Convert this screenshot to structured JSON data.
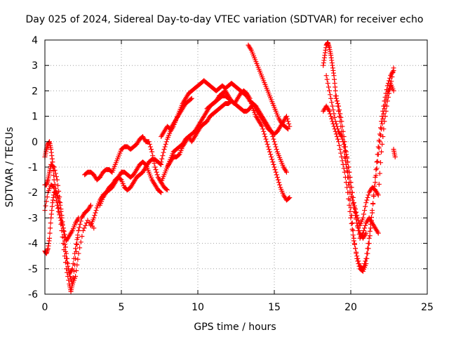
{
  "chart_data": {
    "type": "scatter",
    "title": "Day 025 of 2024, Sidereal Day-to-day VTEC variation (SDTVAR) for receiver echo",
    "xlabel": "GPS time / hours",
    "ylabel": "SDTVAR / TECUs",
    "xlim": [
      0,
      25
    ],
    "ylim": [
      -6,
      4
    ],
    "xticks": [
      "0",
      "5",
      "10",
      "15",
      "20",
      "25"
    ],
    "yticks": [
      "-6",
      "-5",
      "-4",
      "-3",
      "-2",
      "-1",
      "0",
      "1",
      "2",
      "3",
      "4"
    ],
    "grid": true,
    "marker": "+",
    "color": "#ff0000",
    "series": [
      {
        "x": [
          0.0,
          0.1,
          0.2,
          0.3,
          0.4,
          0.5,
          0.6,
          0.8,
          1.0,
          1.2,
          1.4,
          1.6,
          1.7,
          1.8,
          2.0,
          2.2,
          2.4,
          2.6,
          2.8,
          3.0
        ],
        "y": [
          -0.6,
          -0.3,
          -0.1,
          0.0,
          -0.3,
          -0.8,
          -1.5,
          -2.2,
          -3.0,
          -4.0,
          -5.0,
          -5.6,
          -5.9,
          -5.6,
          -4.6,
          -3.5,
          -3.0,
          -2.8,
          -2.7,
          -2.5
        ]
      },
      {
        "x": [
          0.0,
          0.1,
          0.2,
          0.3,
          0.4,
          0.5,
          0.6,
          0.8,
          1.0,
          1.2,
          1.4,
          1.6,
          1.8,
          2.0,
          2.2
        ],
        "y": [
          -4.3,
          -4.4,
          -4.2,
          -3.8,
          -3.0,
          -2.4,
          -2.0,
          -2.0,
          -2.5,
          -3.5,
          -4.6,
          -5.2,
          -5.0,
          -4.2,
          -3.5
        ]
      },
      {
        "x": [
          0.0,
          0.2,
          0.4,
          0.6,
          0.8,
          1.0,
          1.2,
          1.4,
          1.6,
          1.8,
          2.0,
          2.2
        ],
        "y": [
          -2.7,
          -2.0,
          -1.7,
          -1.8,
          -2.5,
          -3.0,
          -3.4,
          -3.9,
          -3.7,
          -3.5,
          -3.2,
          -3.0
        ]
      },
      {
        "x": [
          0.0,
          0.1,
          0.2,
          0.3,
          0.4,
          0.6,
          0.8,
          1.0,
          1.2,
          1.4,
          1.6,
          1.8,
          2.0,
          2.2,
          2.5,
          2.8,
          3.2
        ],
        "y": [
          -1.7,
          -1.7,
          -1.5,
          -1.2,
          -0.9,
          -1.0,
          -1.5,
          -2.4,
          -3.4,
          -4.4,
          -5.2,
          -5.6,
          -5.3,
          -4.4,
          -3.5,
          -3.1,
          -3.4
        ]
      },
      {
        "x": [
          2.6,
          2.8,
          3.0,
          3.2,
          3.4,
          3.6,
          3.8,
          4.0,
          4.2,
          4.4,
          4.6,
          4.8,
          5.0,
          5.2,
          5.4,
          5.6,
          5.8,
          6.0,
          6.2,
          6.4,
          6.6,
          6.8,
          7.0,
          7.2,
          7.4,
          7.6,
          7.8,
          8.0
        ],
        "y": [
          -1.3,
          -1.2,
          -1.2,
          -1.3,
          -1.5,
          -1.4,
          -1.2,
          -1.1,
          -1.1,
          -1.2,
          -0.9,
          -0.6,
          -0.3,
          -0.2,
          -0.2,
          -0.3,
          -0.2,
          -0.1,
          0.1,
          0.2,
          0.0,
          0.0,
          -0.4,
          -1.0,
          -1.4,
          -1.6,
          -1.8,
          -1.9
        ]
      },
      {
        "x": [
          3.0,
          3.2,
          3.4,
          3.6,
          3.8,
          4.0,
          4.2,
          4.4,
          4.6,
          4.8,
          5.0,
          5.2,
          5.4,
          5.6,
          5.8,
          6.0,
          6.2,
          6.4,
          6.6,
          6.8,
          7.0,
          7.2,
          7.4,
          7.6
        ],
        "y": [
          -3.3,
          -3.0,
          -2.6,
          -2.3,
          -2.1,
          -2.0,
          -1.9,
          -1.8,
          -1.6,
          -1.4,
          -1.2,
          -1.2,
          -1.3,
          -1.4,
          -1.3,
          -1.1,
          -0.9,
          -0.8,
          -0.9,
          -1.2,
          -1.5,
          -1.7,
          -1.9,
          -2.0
        ]
      },
      {
        "x": [
          3.6,
          3.8,
          4.0,
          4.2,
          4.4,
          4.6,
          4.8,
          5.0,
          5.2,
          5.4,
          5.6,
          5.8,
          6.0,
          6.2,
          6.4,
          6.6,
          6.8,
          7.0,
          7.2,
          7.4,
          7.6
        ],
        "y": [
          -2.5,
          -2.2,
          -2.0,
          -1.8,
          -1.7,
          -1.5,
          -1.4,
          -1.5,
          -1.8,
          -1.9,
          -1.8,
          -1.6,
          -1.4,
          -1.3,
          -1.2,
          -1.0,
          -0.8,
          -0.7,
          -0.7,
          -0.8,
          -0.9
        ]
      },
      {
        "x": [
          7.6,
          7.8,
          8.0,
          8.2,
          8.4,
          8.6,
          8.8,
          9.0,
          9.2,
          9.4,
          9.6,
          9.8,
          10.0,
          10.2,
          10.4,
          10.6,
          10.8,
          11.0,
          11.2,
          11.4,
          11.6,
          11.8,
          12.0,
          12.2,
          12.4,
          12.6,
          12.8,
          13.0,
          13.2,
          13.4,
          13.6,
          13.8,
          14.0,
          14.2,
          14.4,
          14.6,
          14.8,
          15.0,
          15.2,
          15.4,
          15.6,
          15.8,
          16.0
        ],
        "y": [
          -0.8,
          -0.3,
          0.1,
          0.4,
          0.6,
          0.9,
          1.2,
          1.5,
          1.7,
          1.9,
          2.0,
          2.1,
          2.2,
          2.3,
          2.4,
          2.3,
          2.2,
          2.1,
          2.0,
          2.1,
          2.2,
          2.1,
          2.2,
          2.3,
          2.2,
          2.1,
          2.0,
          1.9,
          1.8,
          1.6,
          1.5,
          1.3,
          1.1,
          0.9,
          0.7,
          0.5,
          0.4,
          0.3,
          0.4,
          0.6,
          0.8,
          1.0,
          0.6
        ]
      },
      {
        "x": [
          7.6,
          7.8,
          8.0,
          8.2,
          8.4,
          8.6,
          8.8,
          9.0,
          9.2,
          9.4,
          9.6,
          9.8,
          10.0,
          10.2,
          10.4,
          10.6,
          10.8,
          11.0,
          11.2,
          11.4,
          11.6,
          11.8,
          12.0,
          12.2,
          12.4,
          12.6,
          12.8,
          13.0,
          13.2,
          13.4,
          13.6,
          13.8,
          14.0,
          14.2,
          14.4,
          14.6,
          14.8,
          15.0,
          15.2,
          15.4,
          15.6,
          15.8,
          16.0
        ],
        "y": [
          -1.6,
          -1.3,
          -1.0,
          -0.8,
          -0.6,
          -0.6,
          -0.5,
          -0.2,
          0.0,
          0.2,
          0.3,
          0.4,
          0.6,
          0.8,
          1.0,
          1.2,
          1.4,
          1.5,
          1.6,
          1.7,
          1.8,
          1.8,
          1.7,
          1.6,
          1.5,
          1.7,
          1.9,
          2.0,
          1.9,
          1.7,
          1.3,
          1.0,
          0.8,
          0.6,
          0.2,
          -0.2,
          -0.6,
          -1.0,
          -1.4,
          -1.8,
          -2.1,
          -2.3,
          -2.2
        ]
      },
      {
        "x": [
          8.0,
          8.2,
          8.4,
          8.6,
          8.8,
          9.0,
          9.2,
          9.4,
          9.6,
          9.8,
          10.0,
          10.2,
          10.4,
          10.6,
          10.8,
          11.0,
          11.2,
          11.4,
          11.6,
          11.8,
          12.0,
          12.2,
          12.4,
          12.6,
          12.8,
          13.0,
          13.2,
          13.4,
          13.6,
          13.8,
          14.0,
          14.2,
          14.4,
          14.6,
          14.8,
          15.0,
          15.2,
          15.4,
          15.6,
          15.8
        ],
        "y": [
          -1.0,
          -0.7,
          -0.4,
          -0.3,
          -0.2,
          -0.1,
          0.1,
          0.2,
          0.0,
          0.2,
          0.4,
          0.6,
          0.7,
          0.8,
          1.0,
          1.1,
          1.2,
          1.3,
          1.4,
          1.5,
          1.5,
          1.6,
          1.5,
          1.4,
          1.3,
          1.2,
          1.2,
          1.3,
          1.5,
          1.4,
          1.2,
          1.0,
          0.8,
          0.6,
          0.4,
          0.0,
          -0.4,
          -0.7,
          -1.0,
          -1.2
        ]
      },
      {
        "x": [
          7.6,
          7.8,
          8.0,
          8.2,
          8.4,
          8.6,
          8.8,
          9.0,
          9.2,
          9.4,
          9.6
        ],
        "y": [
          0.2,
          0.4,
          0.6,
          0.5,
          0.7,
          0.9,
          1.1,
          1.3,
          1.5,
          1.6,
          1.7
        ]
      },
      {
        "x": [
          10.6,
          10.8,
          11.0,
          11.2,
          11.4,
          11.6,
          11.8,
          12.0,
          12.2,
          12.4
        ],
        "y": [
          1.3,
          1.4,
          1.5,
          1.6,
          1.8,
          1.9,
          2.0,
          1.8,
          1.6,
          1.5
        ]
      },
      {
        "x": [
          13.3,
          13.5,
          13.7,
          13.9,
          14.1,
          14.3,
          14.5,
          14.7,
          14.9,
          15.1,
          15.3,
          15.5,
          15.7,
          15.9
        ],
        "y": [
          3.8,
          3.6,
          3.3,
          3.0,
          2.7,
          2.4,
          2.1,
          1.8,
          1.5,
          1.2,
          0.9,
          0.7,
          0.6,
          0.5
        ]
      },
      {
        "x": [
          18.2,
          18.3,
          18.4,
          18.5,
          18.6,
          18.7,
          18.8,
          18.9,
          19.0,
          19.2,
          19.4,
          19.6,
          19.8,
          20.0,
          20.2,
          20.4,
          20.6,
          20.8,
          21.0,
          21.2,
          21.4,
          21.6,
          21.8,
          22.0,
          22.2,
          22.4,
          22.6,
          22.8
        ],
        "y": [
          3.0,
          3.4,
          3.8,
          3.9,
          3.7,
          3.4,
          3.0,
          2.6,
          2.0,
          1.2,
          0.4,
          -0.4,
          -1.4,
          -2.6,
          -3.8,
          -4.6,
          -5.0,
          -5.1,
          -4.8,
          -4.0,
          -2.8,
          -1.4,
          -0.2,
          0.8,
          1.6,
          2.2,
          2.6,
          2.8
        ]
      },
      {
        "x": [
          18.2,
          18.4,
          18.6,
          18.8,
          19.0,
          19.2,
          19.4,
          19.6,
          19.8,
          20.0,
          20.2,
          20.4,
          20.6,
          20.8,
          21.0,
          21.2,
          21.4,
          21.6,
          21.8,
          22.0,
          22.2,
          22.4,
          22.6,
          22.8
        ],
        "y": [
          1.2,
          1.4,
          1.2,
          0.8,
          0.4,
          0.0,
          -0.6,
          -1.2,
          -2.0,
          -3.0,
          -3.9,
          -4.5,
          -4.9,
          -5.0,
          -4.6,
          -3.8,
          -2.7,
          -1.6,
          -0.5,
          0.5,
          1.3,
          1.9,
          2.3,
          2.0
        ]
      },
      {
        "x": [
          18.4,
          18.6,
          18.8,
          19.0,
          19.2,
          19.4,
          19.6,
          19.8,
          20.0,
          20.2,
          20.4,
          20.6,
          20.8,
          21.0,
          21.2,
          21.4,
          21.6,
          21.8,
          22.0,
          22.2,
          22.4,
          22.6,
          22.8
        ],
        "y": [
          2.6,
          2.0,
          1.4,
          0.8,
          0.4,
          0.2,
          -0.2,
          -0.8,
          -1.6,
          -2.4,
          -2.9,
          -3.3,
          -3.0,
          -2.4,
          -2.0,
          -1.8,
          -1.9,
          -2.1,
          -0.4,
          0.8,
          1.6,
          2.2,
          2.9
        ]
      },
      {
        "x": [
          19.0,
          19.2,
          19.4,
          19.6,
          19.8,
          20.0,
          20.2,
          20.4,
          20.6,
          20.8,
          21.0,
          21.2,
          21.4,
          21.6,
          21.8
        ],
        "y": [
          1.8,
          1.4,
          0.8,
          0.0,
          -0.8,
          -1.6,
          -2.4,
          -3.2,
          -3.8,
          -3.6,
          -3.2,
          -3.0,
          -3.2,
          -3.4,
          -3.6
        ]
      },
      {
        "x": [
          19.6,
          19.8,
          20.0,
          20.2,
          20.4,
          20.6,
          20.8,
          21.0
        ],
        "y": [
          -0.6,
          -1.2,
          -2.0,
          -2.6,
          -3.2,
          -3.6,
          -3.8,
          -3.6
        ]
      },
      {
        "x": [
          22.8,
          22.9
        ],
        "y": [
          -0.3,
          -0.6
        ]
      }
    ]
  }
}
